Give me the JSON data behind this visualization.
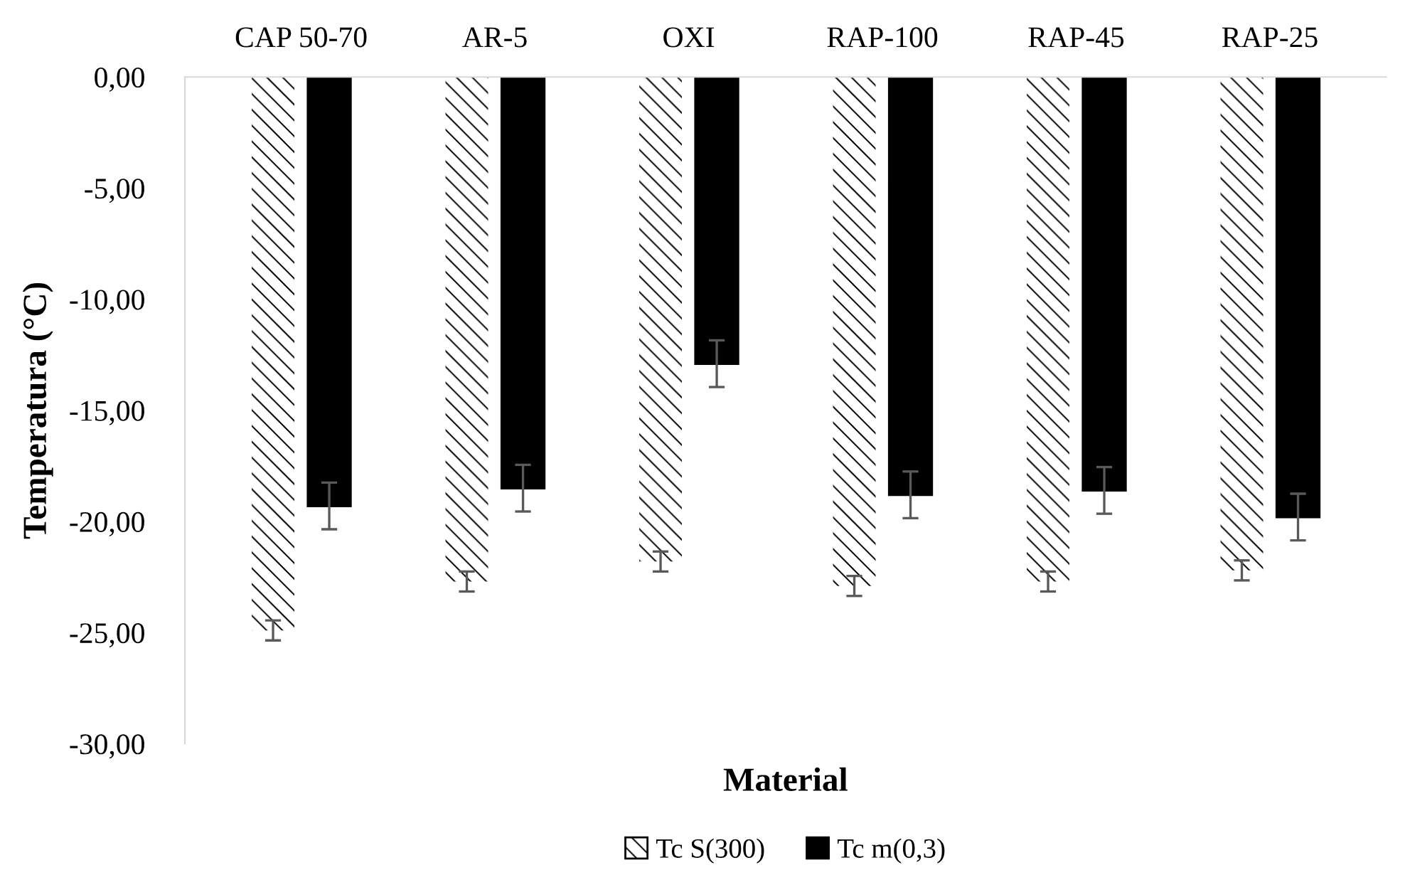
{
  "chart_data": {
    "type": "bar",
    "xlabel": "Material",
    "ylabel": "Temperatura (°C)",
    "categories": [
      "CAP 50-70",
      "AR-5",
      "OXI",
      "RAP-100",
      "RAP-45",
      "RAP-25"
    ],
    "series": [
      {
        "name": "Tc S(300)",
        "color": "#ffffff",
        "values": [
          -24.9,
          -22.7,
          -21.8,
          -22.9,
          -22.7,
          -22.2
        ],
        "errors": [
          0.45,
          0.45,
          0.45,
          0.45,
          0.45,
          0.45
        ]
      },
      {
        "name": "Tc m(0,3)",
        "color": "#000000",
        "values": [
          -19.3,
          -18.5,
          -12.9,
          -18.8,
          -18.6,
          -19.8
        ],
        "errors": [
          1.05,
          1.05,
          1.05,
          1.05,
          1.05,
          1.05
        ]
      }
    ],
    "ylim": [
      -30,
      0
    ],
    "yticks": [
      {
        "value": 0,
        "label": "0,00"
      },
      {
        "value": -5,
        "label": "-5,00"
      },
      {
        "value": -10,
        "label": "-10,00"
      },
      {
        "value": -15,
        "label": "-15,00"
      },
      {
        "value": -20,
        "label": "-20,00"
      },
      {
        "value": -25,
        "label": "-25,00"
      },
      {
        "value": -30,
        "label": "-30,00"
      }
    ],
    "grid": false,
    "legend": "bottom"
  }
}
